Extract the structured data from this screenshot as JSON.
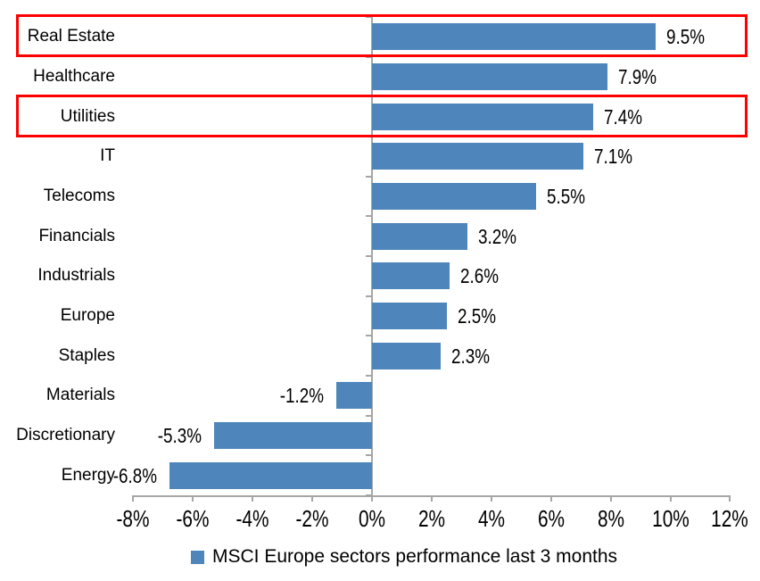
{
  "chart_data": {
    "type": "bar",
    "orientation": "horizontal",
    "categories": [
      "Real Estate",
      "Healthcare",
      "Utilities",
      "IT",
      "Telecoms",
      "Financials",
      "Industrials",
      "Europe",
      "Staples",
      "Materials",
      "Discretionary",
      "Energy"
    ],
    "values": [
      9.5,
      7.9,
      7.4,
      7.1,
      5.5,
      3.2,
      2.6,
      2.5,
      2.3,
      -1.2,
      -5.3,
      -6.8
    ],
    "value_labels": [
      "9.5%",
      "7.9%",
      "7.4%",
      "7.1%",
      "5.5%",
      "3.2%",
      "2.6%",
      "2.5%",
      "2.3%",
      "-1.2%",
      "-5.3%",
      "-6.8%"
    ],
    "x_ticks": [
      -8,
      -6,
      -4,
      -2,
      0,
      2,
      4,
      6,
      8,
      10,
      12
    ],
    "x_tick_labels": [
      "-8%",
      "-6%",
      "-4%",
      "-2%",
      "0%",
      "2%",
      "4%",
      "6%",
      "8%",
      "10%",
      "12%"
    ],
    "xlim": [
      -8,
      12
    ],
    "grid": false,
    "legend": "MSCI Europe sectors performance last 3 months",
    "legend_position": "bottom",
    "bar_color": "#4e86bc",
    "axis_color": "#a6a6a6",
    "text_color": "#000000",
    "highlight_color": "#ff0000",
    "highlighted_categories": [
      "Real Estate",
      "Utilities"
    ]
  }
}
